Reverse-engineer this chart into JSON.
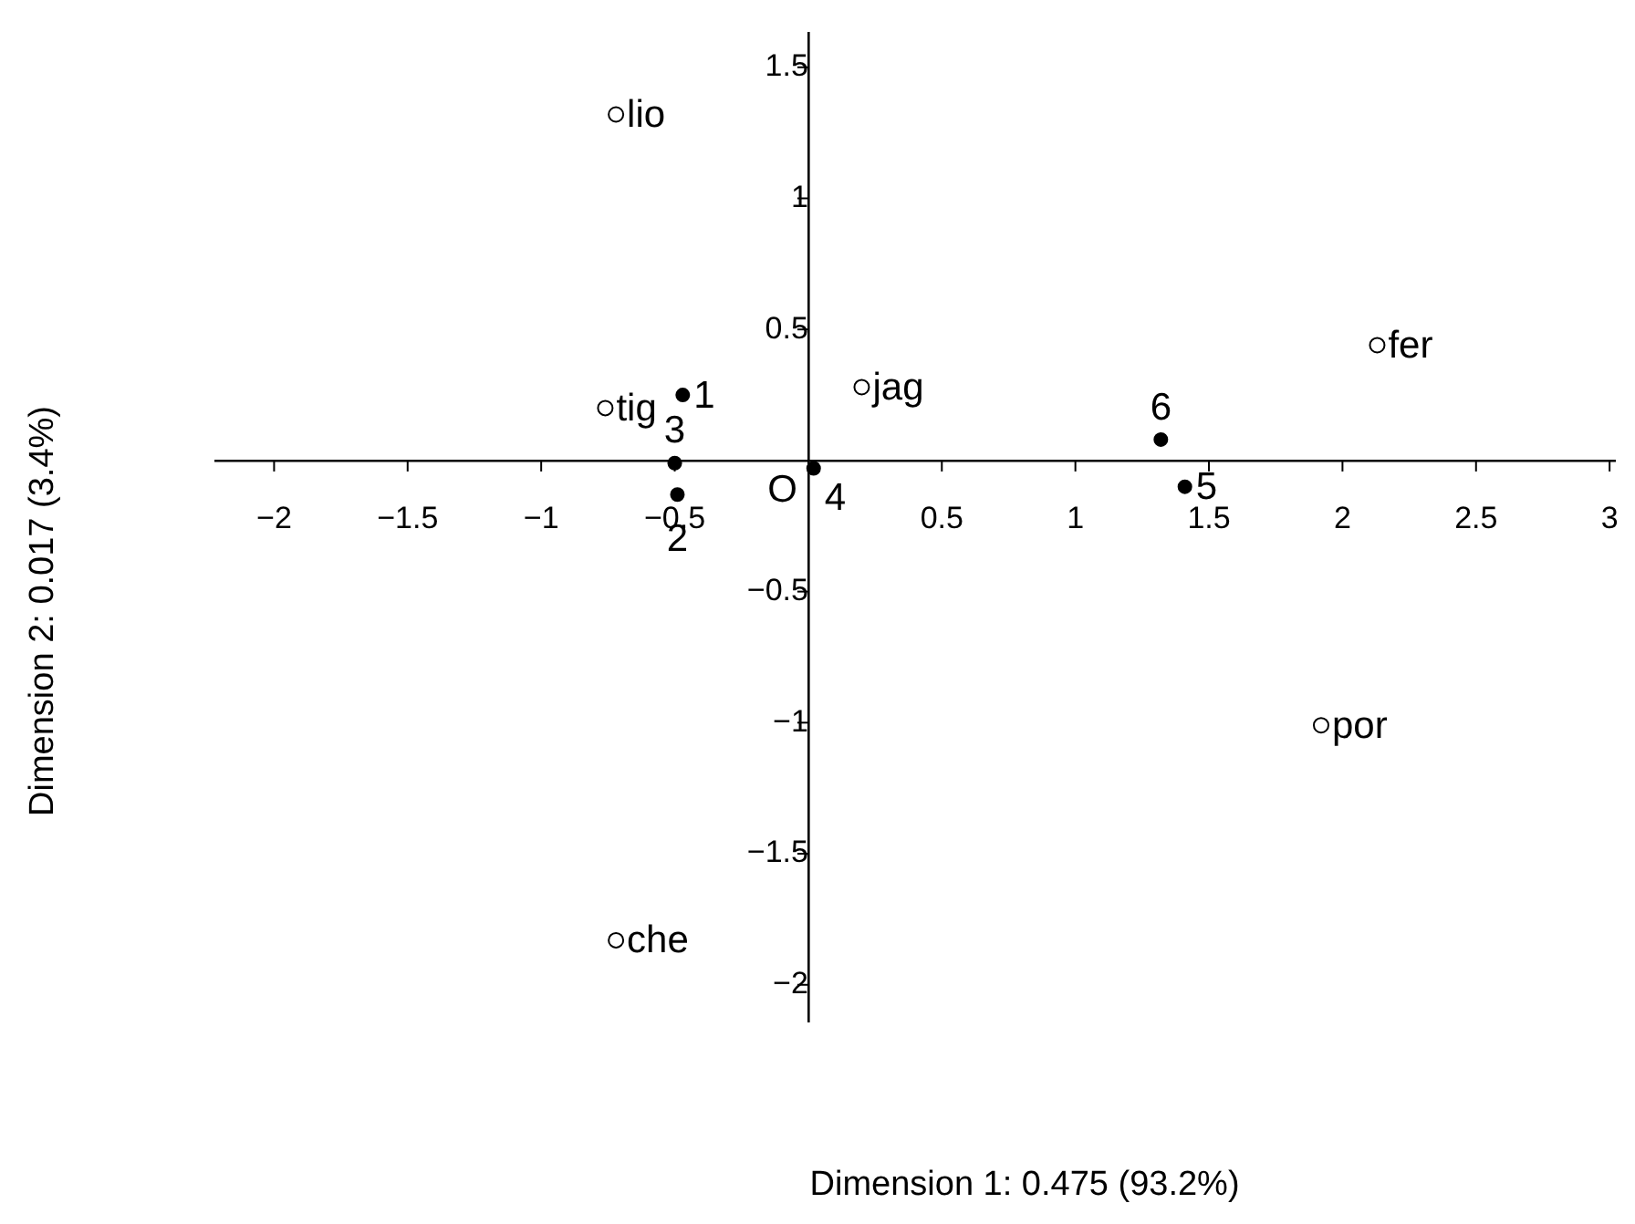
{
  "chart_data": {
    "type": "scatter",
    "xlabel": "Dimension 1: 0.475 (93.2%)",
    "ylabel": "Dimension 2: 0.017 (3.4%)",
    "series": [
      {
        "color": "#000000",
        "x": [
          -0.47,
          -0.49,
          -0.5,
          0.02,
          1.41,
          1.32
        ],
        "values": [
          0.25,
          -0.13,
          -0.01,
          -0.03,
          -0.1,
          0.08
        ]
      },
      {
        "color": "#000000",
        "x": [
          -0.72,
          -0.76,
          0.2,
          2.13,
          1.92,
          -0.72
        ],
        "values": [
          1.32,
          0.2,
          0.28,
          0.44,
          -1.01,
          -1.83
        ]
      }
    ],
    "annotations": [
      {
        "text": "1",
        "x": -0.47,
        "y": 0.25
      },
      {
        "text": "2",
        "x": -0.49,
        "y": -0.13
      },
      {
        "text": "3",
        "x": -0.5,
        "y": -0.01
      },
      {
        "text": "4",
        "x": 0.02,
        "y": -0.03
      },
      {
        "text": "5",
        "x": 1.41,
        "y": -0.1
      },
      {
        "text": "6",
        "x": 1.32,
        "y": 0.08
      },
      {
        "text": "lio",
        "x": -0.72,
        "y": 1.32
      },
      {
        "text": "tig",
        "x": -0.76,
        "y": 0.2
      },
      {
        "text": "jag",
        "x": 0.2,
        "y": 0.28
      },
      {
        "text": "fer",
        "x": 2.13,
        "y": 0.44
      },
      {
        "text": "por",
        "x": 1.92,
        "y": -1.01
      },
      {
        "text": "che",
        "x": -0.72,
        "y": -1.83
      },
      {
        "text": "O",
        "x": 0,
        "y": 0
      }
    ],
    "xlim": [
      -2.22,
      3.02
    ],
    "ylim": [
      -2.14,
      1.63
    ],
    "xticks": [
      -2,
      -1.5,
      -1,
      -0.5,
      0.5,
      1,
      1.5,
      2,
      2.5,
      3
    ],
    "yticks": [
      -2,
      -1.5,
      -1,
      -0.5,
      0.5,
      1,
      1.5
    ],
    "grid": false,
    "legend": false,
    "marker": "circle"
  }
}
